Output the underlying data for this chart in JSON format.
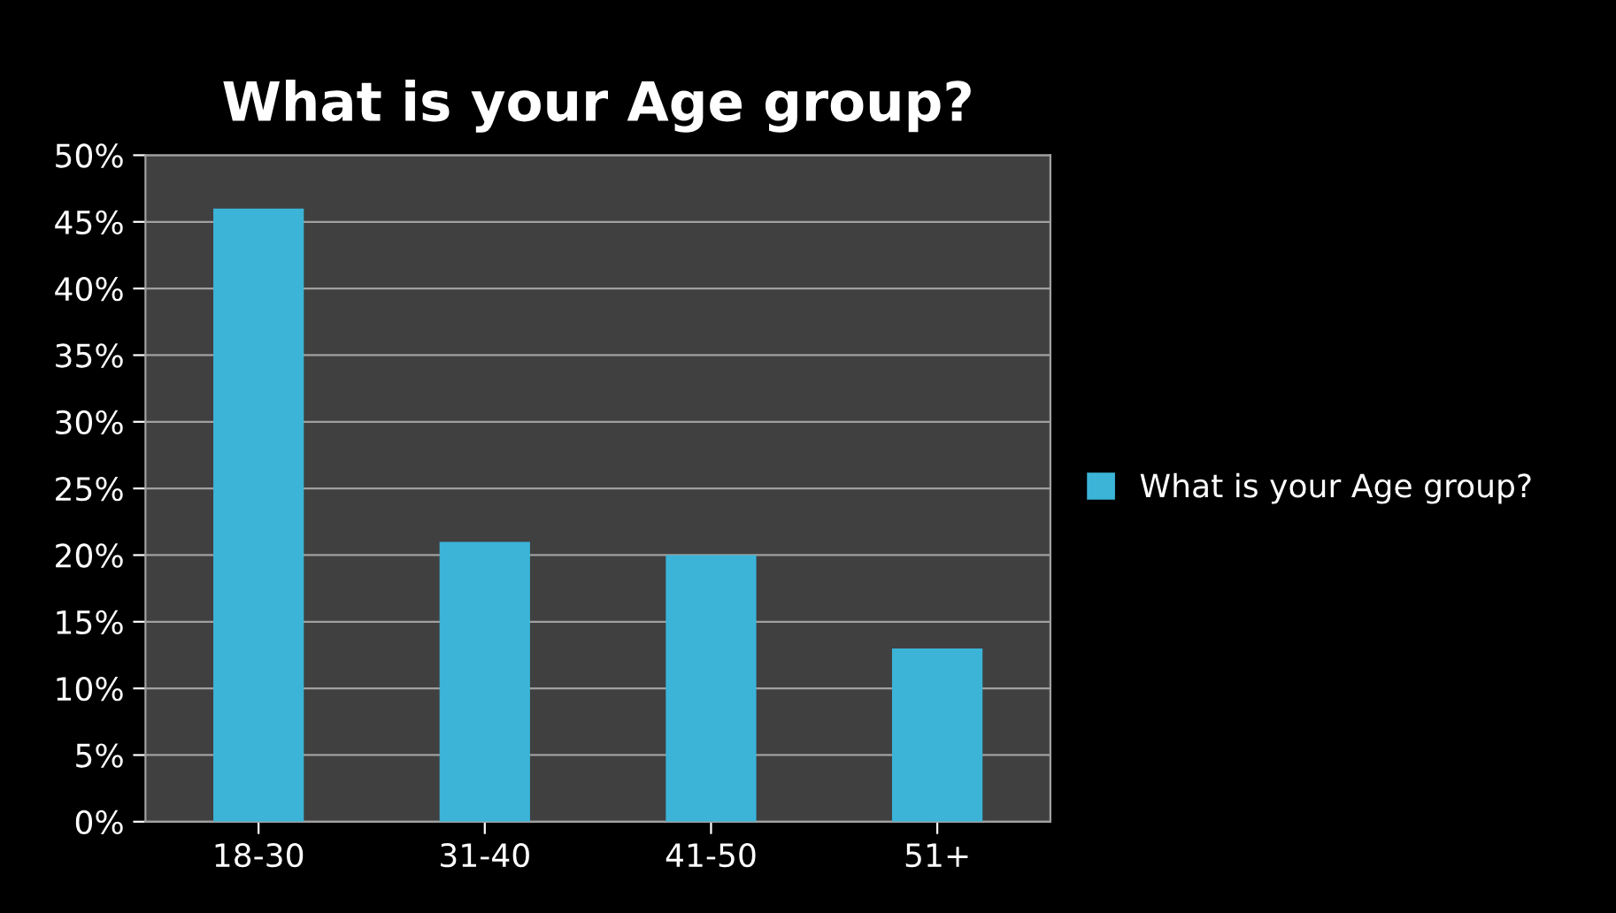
{
  "chart_data": {
    "type": "bar",
    "title": "What is your Age group?",
    "categories": [
      "18-30",
      "31-40",
      "41-50",
      "51+"
    ],
    "series": [
      {
        "name": "What is your Age group?",
        "color": "#3bb4d8",
        "values": [
          46,
          21,
          20,
          13
        ]
      }
    ],
    "ylim": [
      0,
      50
    ],
    "yticks": [
      {
        "value": 0,
        "label": "0%"
      },
      {
        "value": 5,
        "label": "5%"
      },
      {
        "value": 10,
        "label": "10%"
      },
      {
        "value": 15,
        "label": "15%"
      },
      {
        "value": 20,
        "label": "20%"
      },
      {
        "value": 25,
        "label": "25%"
      },
      {
        "value": 30,
        "label": "30%"
      },
      {
        "value": 35,
        "label": "35%"
      },
      {
        "value": 40,
        "label": "40%"
      },
      {
        "value": 45,
        "label": "45%"
      },
      {
        "value": 50,
        "label": "50%"
      }
    ],
    "grid": "y",
    "legend": "right"
  }
}
